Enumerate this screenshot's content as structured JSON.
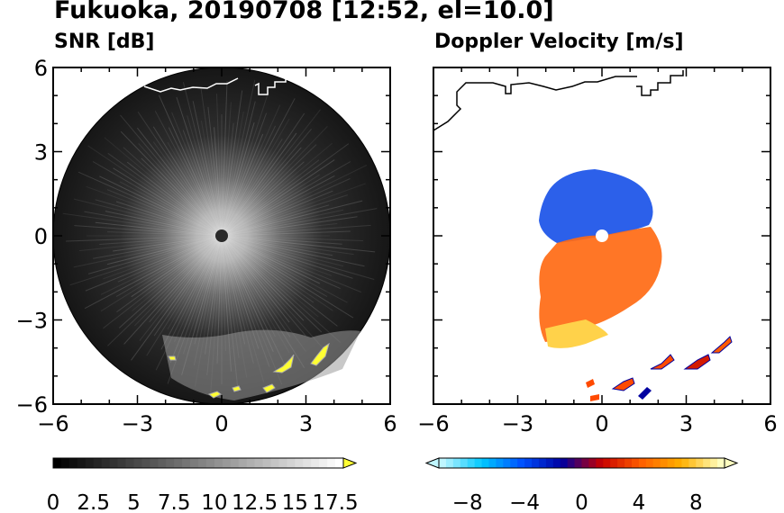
{
  "figure": {
    "title": "Fukuoka, 20190708 [12:52, el=10.0]"
  },
  "chart_data": [
    {
      "type": "heatmap",
      "title": "SNR [dB]",
      "xlim": [
        -6,
        6
      ],
      "ylim": [
        -6,
        6
      ],
      "x_ticks": [
        "−6",
        "−3",
        "0",
        "3",
        "6"
      ],
      "y_ticks": [
        "6",
        "3",
        "0",
        "−3",
        "−6"
      ],
      "grid": false,
      "colorbar": {
        "orientation": "horizontal",
        "range": [
          0,
          18
        ],
        "extend": "max",
        "tick_labels": [
          "0",
          "2.5",
          "5",
          "7.5",
          "10",
          "12.5",
          "15",
          "17.5"
        ],
        "colors": [
          "#000000",
          "#ffffff",
          "#ffff33"
        ]
      },
      "scan_radius_km": 6
    },
    {
      "type": "heatmap",
      "title": "Doppler Velocity [m/s]",
      "xlim": [
        -6,
        6
      ],
      "ylim": [
        -6,
        6
      ],
      "x_ticks": [
        "−6",
        "−3",
        "0",
        "3",
        "6"
      ],
      "y_ticks": [],
      "grid": false,
      "colorbar": {
        "orientation": "horizontal",
        "range": [
          -10,
          10
        ],
        "extend": "both",
        "tick_labels": [
          "−8",
          "−4",
          "0",
          "4",
          "8"
        ],
        "colors": [
          "#bff6ff",
          "#00c8ff",
          "#0050ff",
          "#0000a0",
          "#c80000",
          "#ff6000",
          "#ffb000",
          "#ffffc0"
        ]
      }
    }
  ]
}
